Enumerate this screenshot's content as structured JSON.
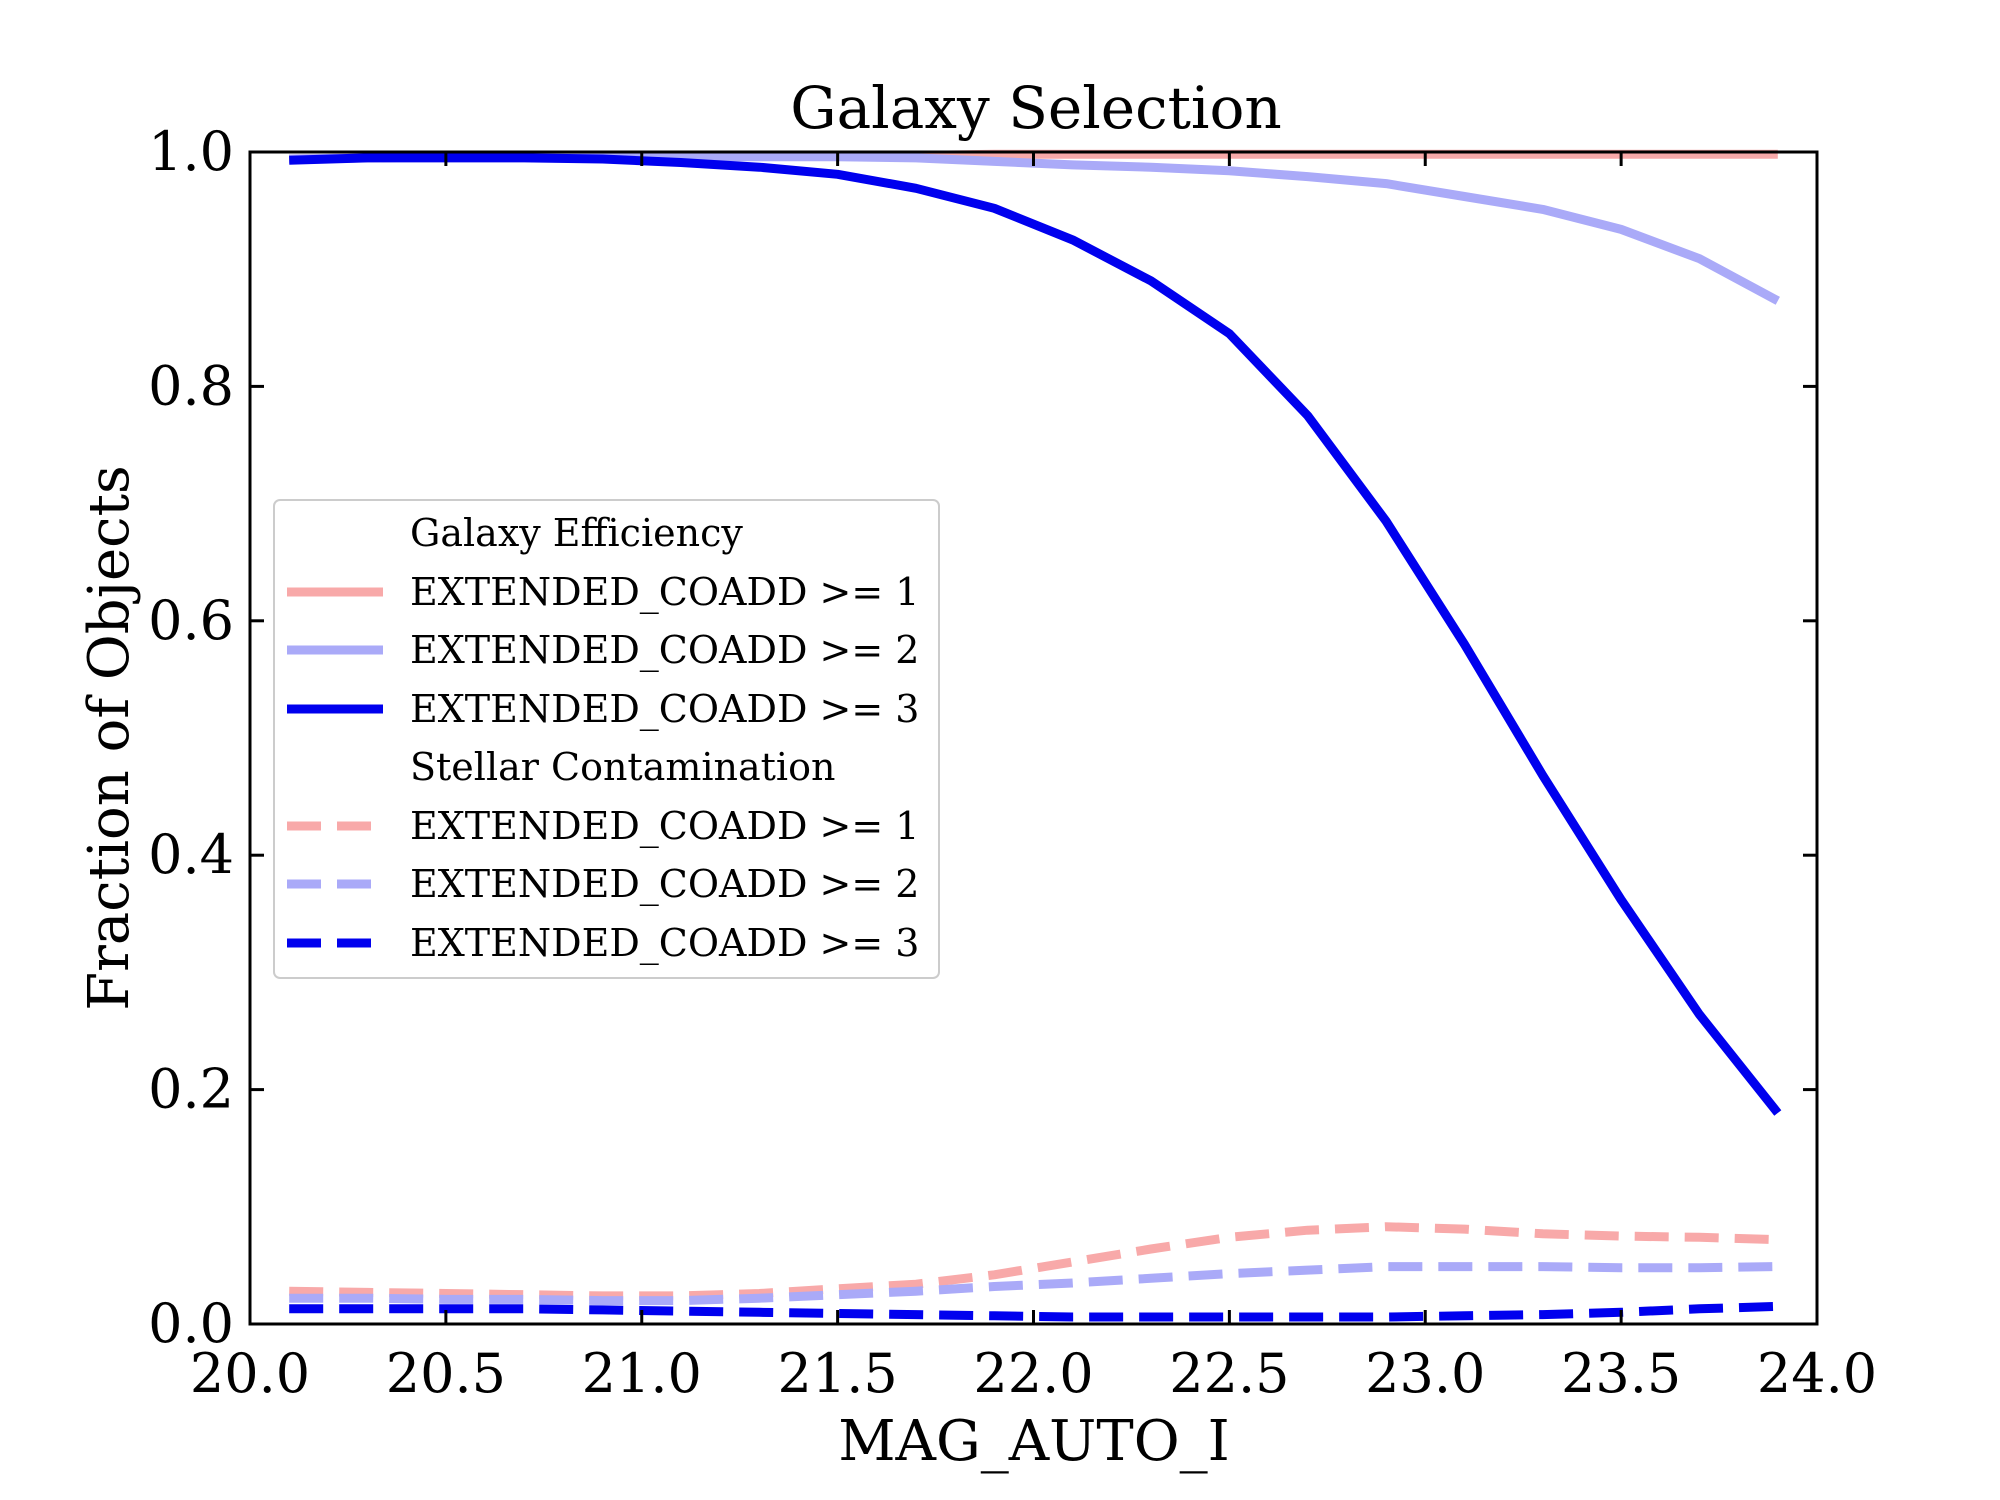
{
  "chart_data": {
    "type": "line",
    "title": "Galaxy Selection",
    "xlabel": "MAG_AUTO_I",
    "ylabel": "Fraction of Objects",
    "xlim": [
      20.0,
      24.0
    ],
    "ylim": [
      0.0,
      1.0
    ],
    "xticks": [
      "20.0",
      "20.5",
      "21.0",
      "21.5",
      "22.0",
      "22.5",
      "23.0",
      "23.5",
      "24.0"
    ],
    "yticks": [
      "0.0",
      "0.2",
      "0.4",
      "0.6",
      "0.8",
      "1.0"
    ],
    "grid": false,
    "legend_position": "center-left",
    "legend": {
      "group1_title": "Galaxy Efficiency",
      "group2_title": "Stellar Contamination"
    },
    "x": [
      20.1,
      20.3,
      20.5,
      20.7,
      20.9,
      21.1,
      21.3,
      21.5,
      21.7,
      21.9,
      22.1,
      22.3,
      22.5,
      22.7,
      22.9,
      23.1,
      23.3,
      23.5,
      23.7,
      23.9
    ],
    "series": [
      {
        "name": "EXTENDED_COADD >= 1",
        "group": "efficiency",
        "style": "solid",
        "color": "#f8a9a9",
        "values": [
          0.994,
          0.995,
          0.996,
          0.996,
          0.996,
          0.996,
          0.997,
          0.997,
          0.997,
          0.998,
          0.998,
          0.998,
          0.998,
          0.998,
          0.998,
          0.998,
          0.998,
          0.998,
          0.998,
          0.998
        ]
      },
      {
        "name": "EXTENDED_COADD >= 2",
        "group": "efficiency",
        "style": "solid",
        "color": "#aaaaf8",
        "values": [
          0.994,
          0.995,
          0.996,
          0.996,
          0.996,
          0.996,
          0.996,
          0.996,
          0.995,
          0.992,
          0.989,
          0.987,
          0.984,
          0.979,
          0.973,
          0.962,
          0.951,
          0.934,
          0.909,
          0.873
        ]
      },
      {
        "name": "EXTENDED_COADD >= 3",
        "group": "efficiency",
        "style": "solid",
        "color": "#0000ee",
        "values": [
          0.993,
          0.995,
          0.995,
          0.995,
          0.994,
          0.991,
          0.987,
          0.981,
          0.969,
          0.952,
          0.925,
          0.89,
          0.845,
          0.775,
          0.685,
          0.58,
          0.468,
          0.362,
          0.264,
          0.18
        ]
      },
      {
        "name": "EXTENDED_COADD >= 1",
        "group": "contamination",
        "style": "dashed",
        "color": "#f8a9a9",
        "values": [
          0.028,
          0.027,
          0.026,
          0.025,
          0.024,
          0.024,
          0.026,
          0.03,
          0.034,
          0.042,
          0.053,
          0.064,
          0.074,
          0.08,
          0.083,
          0.081,
          0.077,
          0.075,
          0.074,
          0.072
        ]
      },
      {
        "name": "EXTENDED_COADD >= 2",
        "group": "contamination",
        "style": "dashed",
        "color": "#aaaaf8",
        "values": [
          0.022,
          0.022,
          0.021,
          0.021,
          0.02,
          0.02,
          0.022,
          0.025,
          0.028,
          0.032,
          0.035,
          0.039,
          0.043,
          0.046,
          0.049,
          0.049,
          0.049,
          0.048,
          0.048,
          0.049
        ]
      },
      {
        "name": "EXTENDED_COADD >= 3",
        "group": "contamination",
        "style": "dashed",
        "color": "#0000ee",
        "values": [
          0.013,
          0.013,
          0.013,
          0.013,
          0.012,
          0.011,
          0.01,
          0.009,
          0.008,
          0.007,
          0.006,
          0.006,
          0.006,
          0.006,
          0.006,
          0.007,
          0.008,
          0.01,
          0.013,
          0.015
        ]
      }
    ]
  }
}
